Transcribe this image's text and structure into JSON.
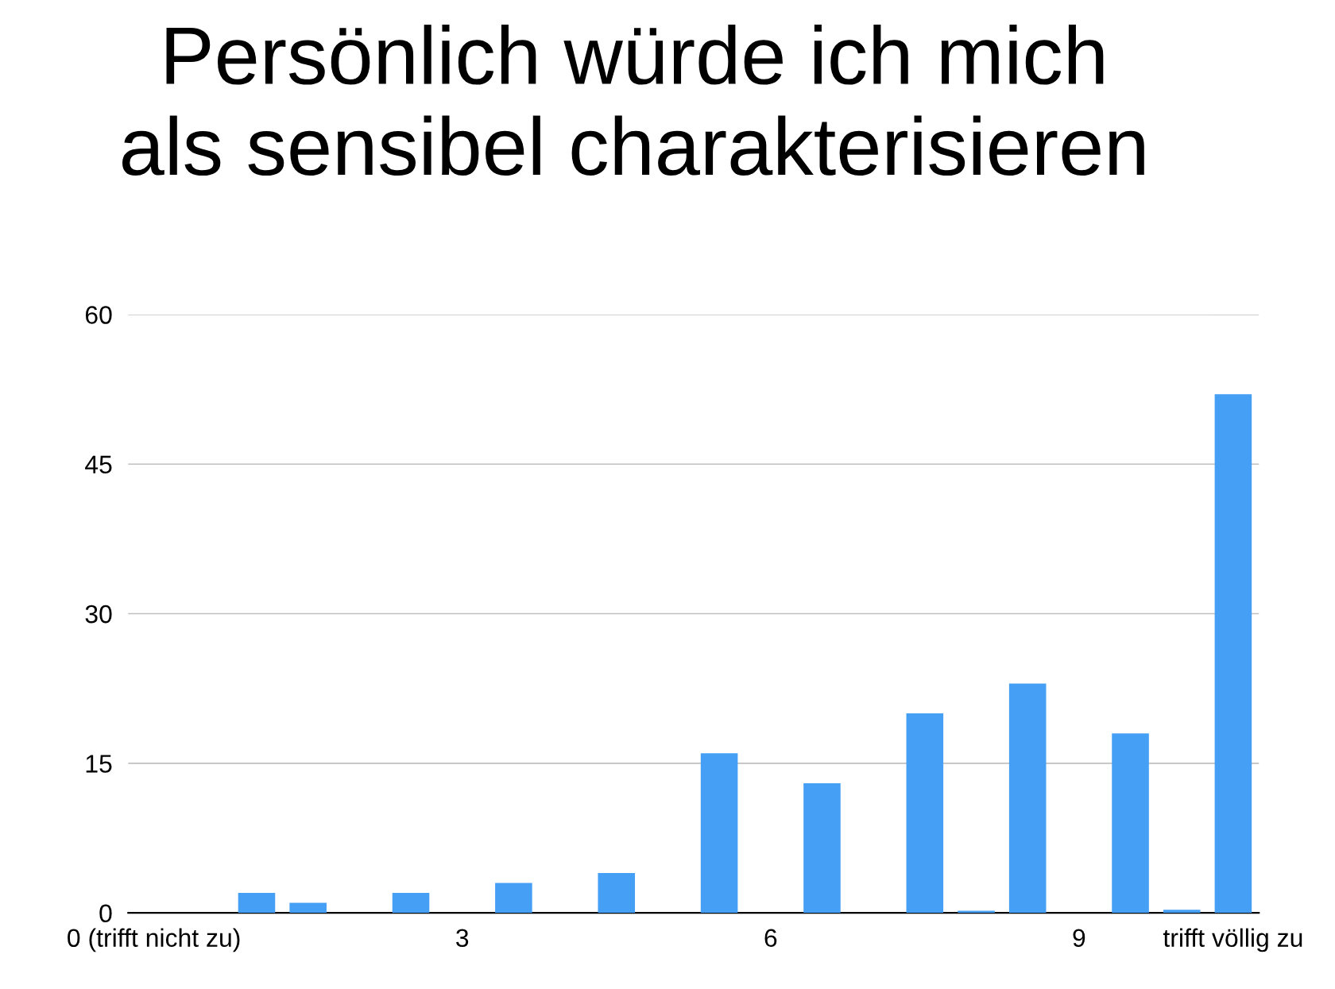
{
  "chart_data": {
    "type": "bar",
    "title": "Persönlich würde ich mich\nals sensibel charakterisieren",
    "categories": [
      "0 (trifft nicht zu)",
      null,
      null,
      null,
      null,
      null,
      "3",
      null,
      null,
      null,
      null,
      null,
      "6",
      null,
      null,
      null,
      null,
      null,
      "9",
      null,
      null,
      "trifft völlig zu"
    ],
    "values": [
      0,
      0,
      2,
      1,
      0,
      2,
      0,
      3,
      0,
      4,
      0,
      16,
      0,
      13,
      0,
      20,
      0.2,
      23,
      0,
      18,
      0.3,
      52
    ],
    "color": "#459ff5",
    "ylim": [
      0,
      60
    ],
    "yticks": [
      0,
      15,
      30,
      45,
      60
    ],
    "grid": "y"
  }
}
